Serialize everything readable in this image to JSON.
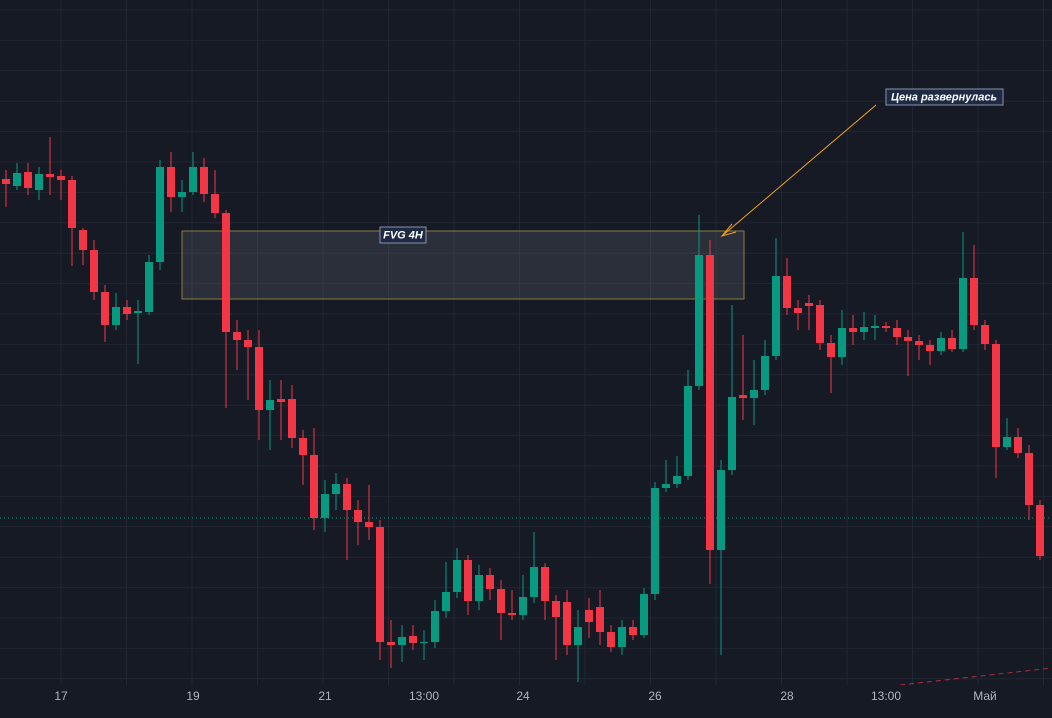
{
  "chart_data": {
    "type": "candlestick",
    "categories": [
      null,
      null,
      null,
      null,
      null,
      "17",
      null,
      null,
      null,
      null,
      null,
      null,
      null,
      null,
      null,
      null,
      null,
      "19",
      null,
      null,
      null,
      null,
      null,
      null,
      null,
      null,
      null,
      null,
      null,
      "21",
      null,
      null,
      null,
      null,
      null,
      null,
      null,
      null,
      "13:00",
      null,
      null,
      null,
      null,
      null,
      null,
      null,
      null,
      "24",
      null,
      null,
      null,
      null,
      null,
      null,
      null,
      null,
      null,
      null,
      null,
      "26",
      null,
      null,
      null,
      null,
      null,
      null,
      null,
      null,
      null,
      null,
      null,
      "28",
      null,
      null,
      null,
      null,
      null,
      null,
      null,
      null,
      "13:00",
      null,
      null,
      null,
      null,
      null,
      null,
      null,
      null,
      "Май",
      null,
      null,
      null,
      null,
      null
    ],
    "open": [
      539,
      532,
      546,
      528,
      544,
      542,
      538,
      488,
      468,
      426,
      393,
      411,
      405,
      406,
      456,
      551,
      521,
      526,
      551,
      524,
      505,
      386,
      378,
      371,
      308,
      319,
      319,
      280,
      263,
      200,
      224,
      234,
      208,
      196,
      191,
      76,
      73,
      82,
      75,
      76,
      107,
      126,
      158,
      117,
      143,
      129,
      105,
      103,
      121,
      151,
      117,
      116,
      73,
      108,
      111,
      86,
      71,
      91,
      83,
      124,
      230,
      234,
      242,
      332,
      463,
      168,
      248,
      323,
      320,
      328,
      362,
      442,
      410,
      415,
      413,
      375,
      361,
      390,
      386,
      390,
      392,
      390,
      381,
      377,
      373,
      367,
      380,
      369,
      440,
      393,
      374,
      271,
      281,
      265,
      213
    ],
    "high": [
      548,
      555,
      555,
      551,
      581,
      548,
      542,
      490,
      478,
      433,
      425,
      418,
      418,
      463,
      558,
      566,
      538,
      566,
      560,
      548,
      508,
      398,
      388,
      388,
      338,
      338,
      333,
      288,
      290,
      238,
      245,
      240,
      218,
      233,
      198,
      98,
      93,
      93,
      88,
      118,
      156,
      170,
      163,
      153,
      150,
      138,
      128,
      143,
      186,
      155,
      123,
      128,
      108,
      120,
      128,
      93,
      98,
      98,
      130,
      236,
      258,
      262,
      348,
      503,
      478,
      258,
      413,
      383,
      358,
      378,
      480,
      460,
      418,
      423,
      418,
      383,
      408,
      403,
      406,
      403,
      396,
      398,
      388,
      383,
      378,
      386,
      388,
      486,
      473,
      398,
      378,
      300,
      290,
      273,
      218
    ],
    "low": [
      511,
      528,
      523,
      518,
      523,
      518,
      452,
      453,
      418,
      376,
      388,
      398,
      354,
      403,
      448,
      506,
      506,
      523,
      516,
      500,
      310,
      348,
      318,
      278,
      268,
      278,
      270,
      233,
      188,
      186,
      208,
      158,
      173,
      178,
      58,
      50,
      56,
      68,
      58,
      70,
      100,
      120,
      103,
      108,
      118,
      78,
      98,
      98,
      115,
      98,
      58,
      63,
      36,
      80,
      73,
      66,
      63,
      78,
      80,
      118,
      226,
      230,
      238,
      328,
      134,
      63,
      243,
      298,
      293,
      323,
      358,
      403,
      388,
      388,
      368,
      325,
      353,
      373,
      378,
      378,
      386,
      373,
      342,
      358,
      353,
      363,
      366,
      366,
      388,
      368,
      240,
      268,
      260,
      198,
      158
    ],
    "close": [
      534,
      545,
      530,
      544,
      541,
      538,
      490,
      468,
      426,
      393,
      411,
      404,
      407,
      456,
      551,
      521,
      526,
      551,
      524,
      505,
      386,
      378,
      371,
      308,
      318,
      316,
      280,
      263,
      200,
      224,
      234,
      208,
      196,
      191,
      76,
      73,
      81,
      75,
      76,
      107,
      126,
      158,
      117,
      143,
      129,
      105,
      103,
      121,
      151,
      117,
      101,
      73,
      91,
      96,
      86,
      71,
      91,
      83,
      124,
      230,
      234,
      242,
      332,
      463,
      168,
      248,
      321,
      320,
      328,
      362,
      442,
      410,
      405,
      412,
      375,
      361,
      390,
      386,
      391,
      392,
      390,
      381,
      377,
      373,
      367,
      380,
      369,
      440,
      393,
      374,
      271,
      281,
      265,
      213,
      162
    ],
    "up_color": "#089981",
    "down_color": "#f23645",
    "ylim": [
      0,
      718
    ],
    "price_line": 200,
    "annotations": [
      {
        "text": "FVG 4H",
        "low": 419,
        "high": 487
      },
      {
        "text": "Цена развернулась"
      }
    ]
  }
}
